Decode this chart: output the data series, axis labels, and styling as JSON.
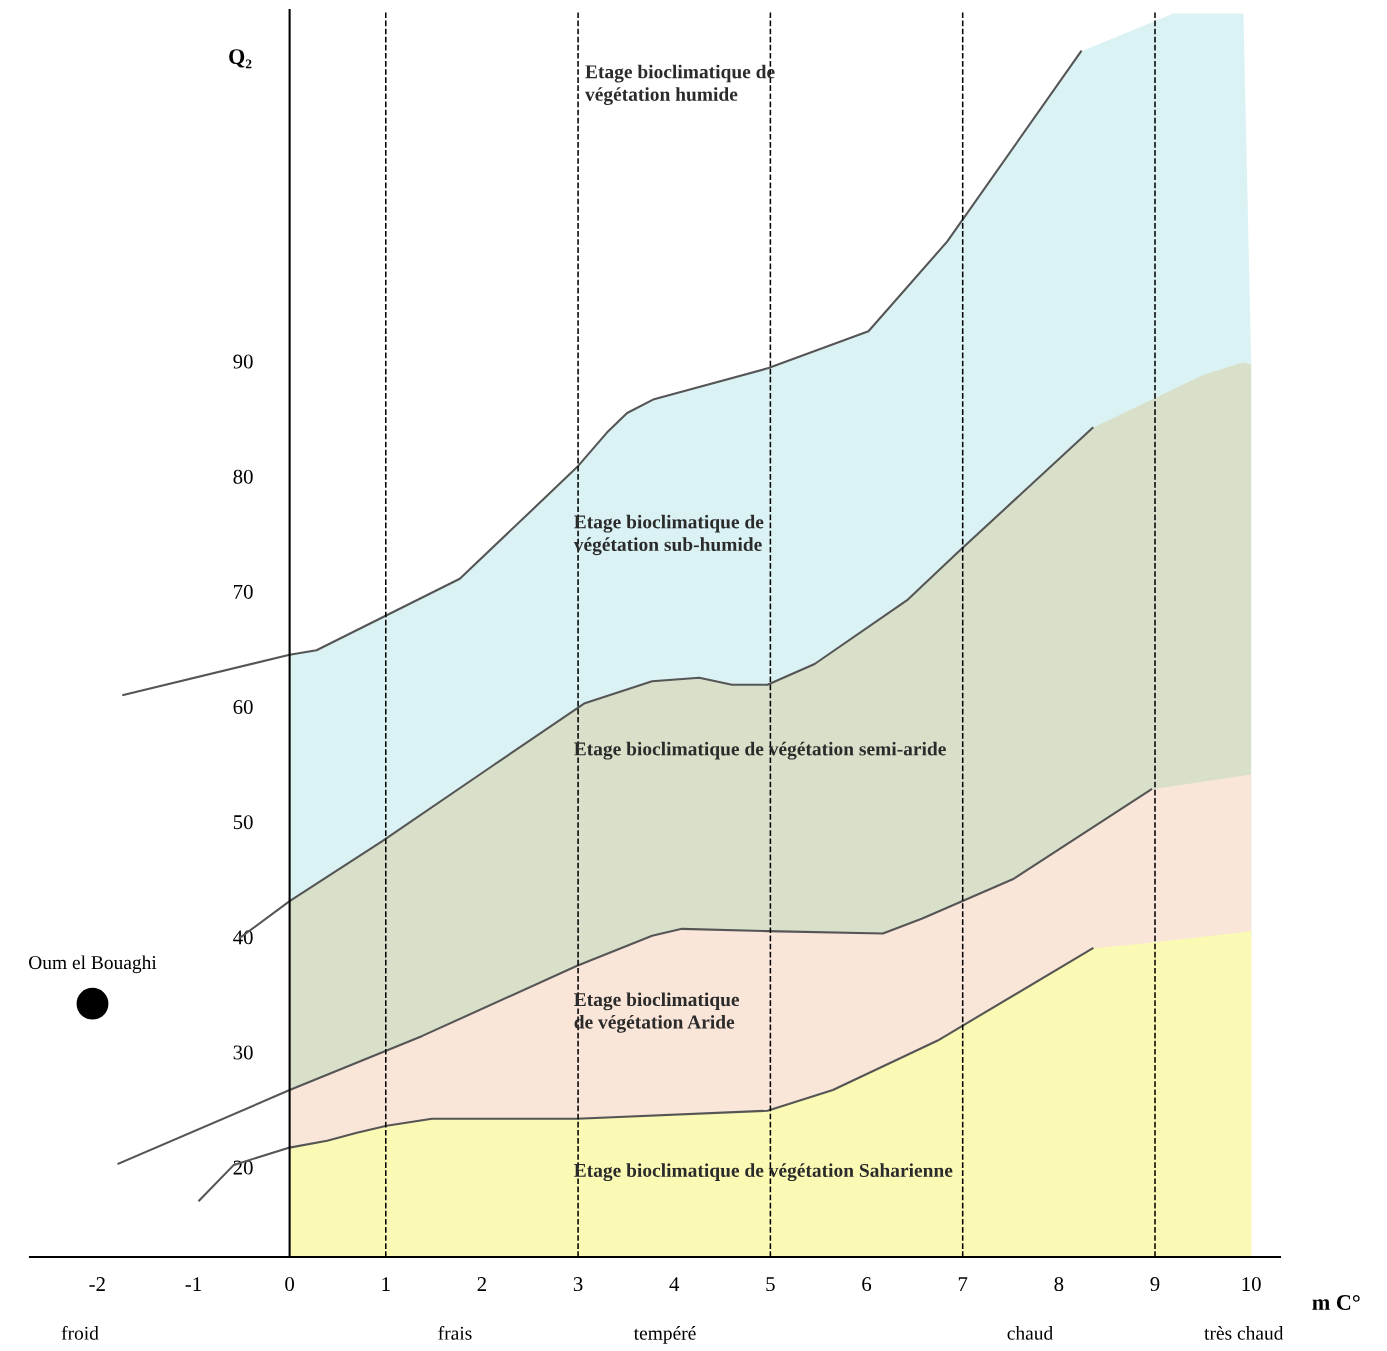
{
  "chart_data": {
    "type": "line",
    "ylabel": "Q₂",
    "xlabel": "m C°",
    "xlim": [
      -2.7,
      10.3
    ],
    "ylim": [
      12.2,
      120.5
    ],
    "xticks": [
      -2,
      -1,
      0,
      1,
      2,
      3,
      4,
      5,
      6,
      7,
      8,
      9,
      10
    ],
    "yticks": [
      20,
      30,
      40,
      50,
      60,
      70,
      80,
      90
    ],
    "grid": false,
    "legend": false,
    "series": [
      {
        "type": "area",
        "color": "#dbf2f4",
        "x": [
          0,
          0.28,
          1.77,
          2.99,
          3.3,
          3.51,
          3.79,
          4.98,
          6.02,
          6.84,
          8.23,
          9.19,
          9.92,
          10
        ],
        "values": [
          64.5,
          64.9,
          71.1,
          80.8,
          83.8,
          85.5,
          86.7,
          89.4,
          92.6,
          100.4,
          116.9,
          120.2,
          120.2,
          89.9
        ]
      },
      {
        "type": "area",
        "color": "#d9e0c9",
        "x": [
          0,
          0.96,
          2.1,
          3.07,
          3.77,
          4.26,
          4.6,
          4.97,
          5.46,
          6.43,
          6.95,
          8.35,
          9.5,
          9.92,
          10
        ],
        "values": [
          43.1,
          48.3,
          54.8,
          60.3,
          62.2,
          62.5,
          61.9,
          61.9,
          63.7,
          69.3,
          73.4,
          84.2,
          88.8,
          89.9,
          89.7
        ]
      },
      {
        "type": "area",
        "color": "#fae6d8",
        "x": [
          0,
          1.38,
          2.99,
          3.77,
          4.08,
          4.97,
          6.17,
          6.58,
          7.52,
          8.96,
          10
        ],
        "values": [
          26.7,
          31.4,
          37.5,
          40.1,
          40.7,
          40.5,
          40.3,
          41.6,
          45.0,
          52.8,
          54.1
        ]
      },
      {
        "type": "area",
        "color": "#fafab4",
        "x": [
          0,
          0.39,
          0.7,
          1.01,
          1.48,
          2.99,
          4.97,
          5.65,
          6.74,
          8.35,
          8.96,
          10
        ],
        "values": [
          21.7,
          22.3,
          23.0,
          23.6,
          24.2,
          24.2,
          24.9,
          26.7,
          31.0,
          39.0,
          39.5,
          40.5
        ]
      },
      {
        "color": "#555555",
        "x": [
          -1.73,
          0,
          0.28,
          1.77,
          2.99,
          3.3,
          3.51,
          3.79,
          4.98,
          6.02,
          6.84,
          8.23
        ],
        "values": [
          61.0,
          64.5,
          64.9,
          71.1,
          80.8,
          83.8,
          85.5,
          86.7,
          89.4,
          92.6,
          100.4,
          116.9
        ]
      },
      {
        "color": "#555555",
        "x": [
          -0.52,
          0,
          0.96,
          2.1,
          3.07,
          3.77,
          4.26,
          4.6,
          4.97,
          5.46,
          6.43,
          6.95,
          8.35
        ],
        "values": [
          39.9,
          43.1,
          48.3,
          54.8,
          60.3,
          62.2,
          62.5,
          61.9,
          61.9,
          63.7,
          69.3,
          73.4,
          84.2
        ]
      },
      {
        "color": "#555555",
        "x": [
          -1.78,
          0,
          1.38,
          2.99,
          3.77,
          4.08,
          4.97,
          6.17,
          6.58,
          7.52,
          8.96
        ],
        "values": [
          20.3,
          26.7,
          31.4,
          37.5,
          40.1,
          40.7,
          40.5,
          40.3,
          41.6,
          45.0,
          52.8
        ]
      },
      {
        "color": "#555555",
        "x": [
          -0.94,
          -0.58,
          0,
          0.39,
          0.7,
          1.01,
          1.48,
          2.99,
          4.97,
          5.65,
          6.74,
          8.35
        ],
        "values": [
          17.1,
          20.2,
          21.7,
          22.3,
          23.0,
          23.6,
          24.2,
          24.2,
          24.9,
          26.7,
          31.0,
          39.0
        ]
      },
      {
        "type": "scatter",
        "name": "Oum el Bouaghi",
        "color": "#000000",
        "marker": "circle",
        "x": [
          -2.05
        ],
        "values": [
          34.2
        ]
      }
    ],
    "ref_lines": [
      {
        "axis": "x",
        "value": 1,
        "color": "#000000",
        "line_style": "dashed"
      },
      {
        "axis": "x",
        "value": 3,
        "color": "#000000",
        "line_style": "dashed"
      },
      {
        "axis": "x",
        "value": 5,
        "color": "#000000",
        "line_style": "dashed"
      },
      {
        "axis": "x",
        "value": 7,
        "color": "#000000",
        "line_style": "dashed"
      },
      {
        "axis": "x",
        "value": 9,
        "color": "#000000",
        "line_style": "dashed"
      }
    ],
    "annotations": [
      "Etage bioclimatique de\nvégétation humide",
      "Etage bioclimatique de\nvégétation sub-humide",
      "Etage bioclimatique de végétation semi-aride",
      "Etage bioclimatique\nde végétation Aride",
      "Etage bioclimatique de végétation Saharienne",
      "froid",
      "frais",
      "tempéré",
      "chaud",
      "très chaud"
    ]
  }
}
